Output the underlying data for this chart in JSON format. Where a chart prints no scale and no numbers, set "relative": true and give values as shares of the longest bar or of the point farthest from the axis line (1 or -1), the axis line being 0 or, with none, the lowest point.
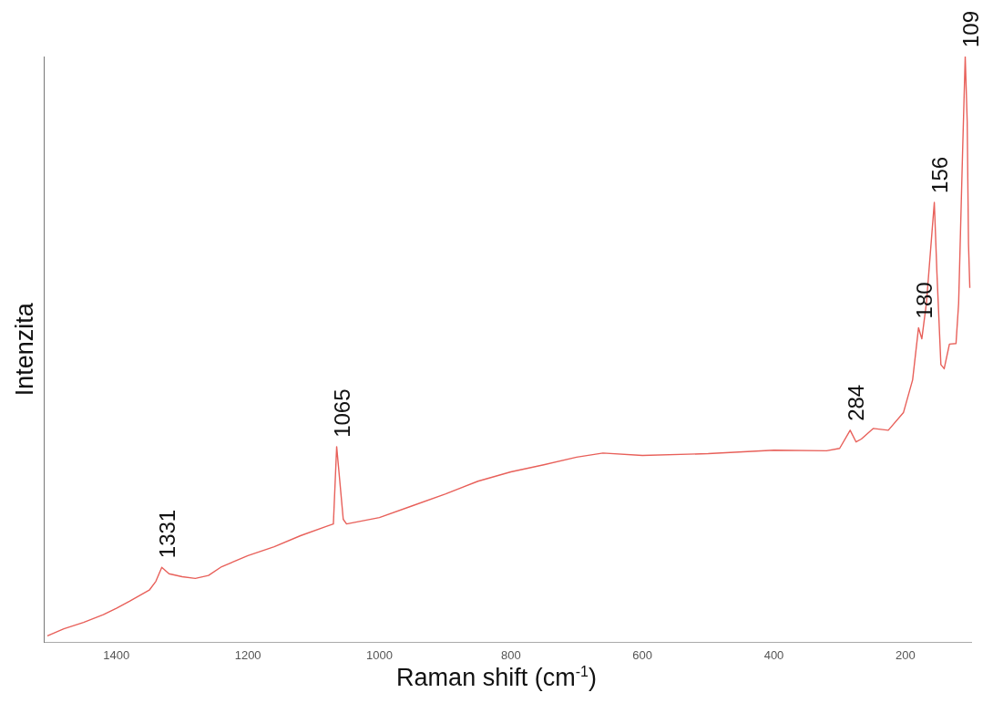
{
  "chart_data": {
    "type": "line",
    "relative": true,
    "xlabel": "Raman shift (cm$^{-1}$)",
    "ylabel": "Intenzita",
    "xlim": [
      1510,
      100
    ],
    "xticks": [
      1400,
      1200,
      1000,
      800,
      600,
      400,
      200
    ],
    "grid": false,
    "marker": "none",
    "legend": false,
    "series": [
      {
        "color": "#e8605a",
        "x": [
          1505,
          1480,
          1450,
          1420,
          1400,
          1380,
          1350,
          1340,
          1331,
          1320,
          1300,
          1280,
          1260,
          1240,
          1200,
          1160,
          1120,
          1080,
          1070,
          1065,
          1060,
          1055,
          1050,
          1000,
          950,
          900,
          850,
          800,
          750,
          700,
          660,
          600,
          500,
          400,
          320,
          300,
          284,
          275,
          267,
          249,
          226,
          203,
          189,
          180,
          175,
          168,
          156,
          152,
          146,
          141,
          133,
          123,
          119,
          113,
          109,
          106,
          104,
          102
        ],
        "values": [
          0.011,
          0.023,
          0.034,
          0.047,
          0.058,
          0.07,
          0.089,
          0.104,
          0.128,
          0.117,
          0.112,
          0.109,
          0.114,
          0.129,
          0.148,
          0.163,
          0.182,
          0.198,
          0.202,
          0.334,
          0.272,
          0.21,
          0.202,
          0.213,
          0.233,
          0.253,
          0.275,
          0.291,
          0.303,
          0.316,
          0.323,
          0.319,
          0.322,
          0.328,
          0.327,
          0.331,
          0.362,
          0.342,
          0.347,
          0.365,
          0.362,
          0.392,
          0.448,
          0.537,
          0.518,
          0.579,
          0.751,
          0.63,
          0.474,
          0.467,
          0.509,
          0.51,
          0.579,
          0.837,
          1.0,
          0.89,
          0.68,
          0.605
        ]
      }
    ],
    "annotations": [
      {
        "text": "1331",
        "x": 1331,
        "y": 0.128
      },
      {
        "text": "1065",
        "x": 1065,
        "y": 0.334
      },
      {
        "text": "284",
        "x": 284,
        "y": 0.362
      },
      {
        "text": "180",
        "x": 180,
        "y": 0.537
      },
      {
        "text": "156",
        "x": 156,
        "y": 0.751
      },
      {
        "text": "109",
        "x": 109,
        "y": 1.0
      }
    ]
  }
}
